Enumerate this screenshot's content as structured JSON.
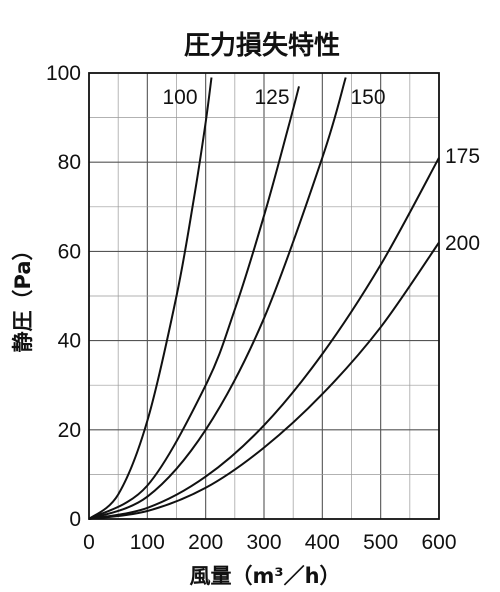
{
  "chart_data": {
    "type": "line",
    "title": "圧力損失特性",
    "xlabel": "風量（m³／h）",
    "ylabel": "静圧（Pa）",
    "xlim": [
      0,
      600
    ],
    "ylim": [
      0,
      100
    ],
    "xticks": [
      "0",
      "100",
      "200",
      "300",
      "400",
      "500",
      "600"
    ],
    "yticks": [
      "0",
      "20",
      "40",
      "60",
      "80",
      "100"
    ],
    "grid": true,
    "series": [
      {
        "name": "100",
        "x": [
          0,
          50,
          100,
          150,
          180,
          200,
          210
        ],
        "y": [
          0,
          5.5,
          22,
          50,
          72,
          89,
          99
        ]
      },
      {
        "name": "125",
        "x": [
          0,
          100,
          200,
          250,
          300,
          340,
          360
        ],
        "y": [
          0,
          7.5,
          30,
          47,
          68,
          87,
          97
        ]
      },
      {
        "name": "150",
        "x": [
          0,
          100,
          200,
          300,
          400,
          440
        ],
        "y": [
          0,
          5,
          20,
          45,
          81,
          99
        ]
      },
      {
        "name": "175",
        "x": [
          0,
          100,
          200,
          300,
          400,
          500,
          600
        ],
        "y": [
          0,
          2.5,
          9.5,
          21,
          37,
          57,
          81
        ]
      },
      {
        "name": "200",
        "x": [
          0,
          100,
          200,
          300,
          400,
          500,
          600
        ],
        "y": [
          0,
          1.8,
          7,
          16,
          28,
          43,
          62
        ]
      }
    ]
  }
}
